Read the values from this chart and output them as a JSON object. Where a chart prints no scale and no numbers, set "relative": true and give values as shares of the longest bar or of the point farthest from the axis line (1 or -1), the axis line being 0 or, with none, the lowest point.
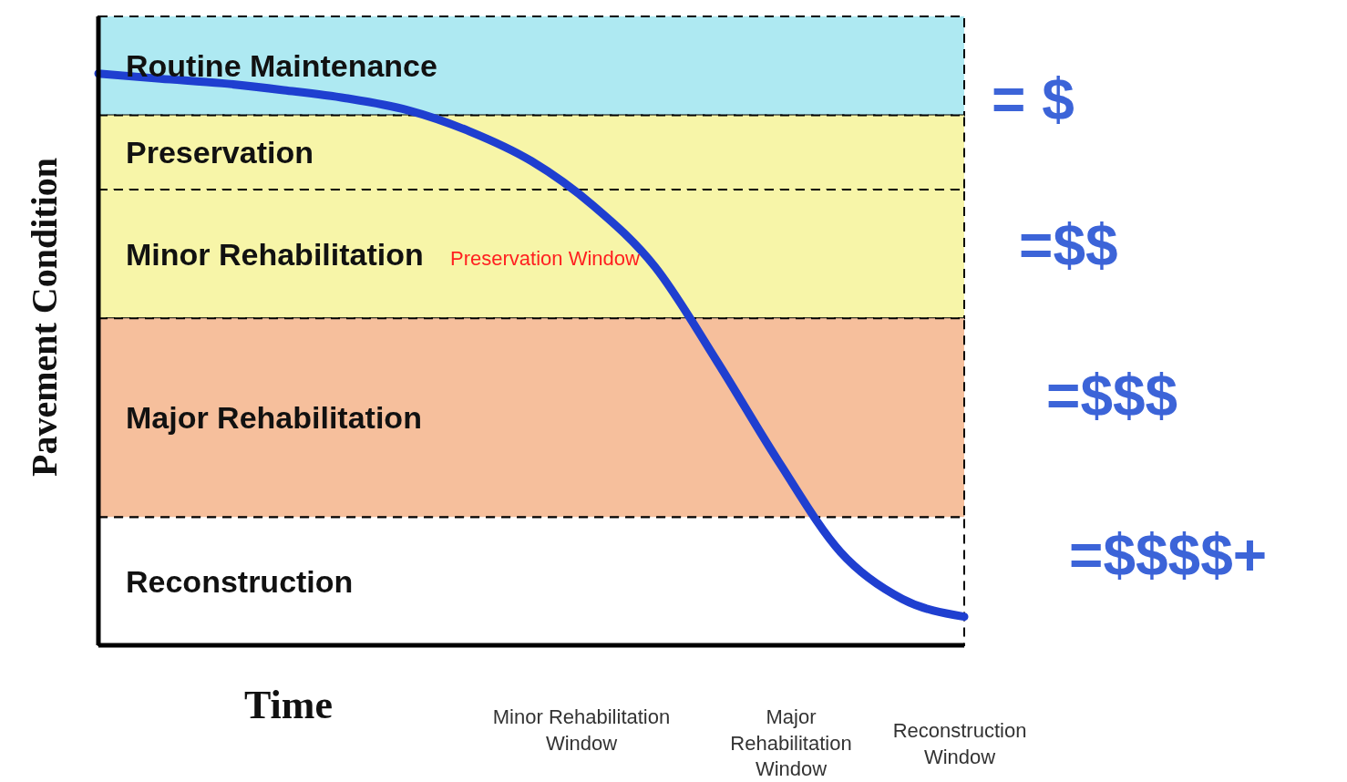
{
  "chart_data": {
    "type": "line",
    "relative": true,
    "xlabel": "Time",
    "ylabel": "Pavement Condition",
    "marker": "none",
    "categories": [
      null,
      null,
      null,
      null,
      null,
      null,
      null,
      null,
      null,
      null,
      null,
      null,
      null,
      null,
      null
    ],
    "series": [
      {
        "color": "#1f3fd0",
        "values": [
          1.0,
          0.991,
          0.983,
          0.971,
          0.957,
          0.936,
          0.899,
          0.847,
          0.769,
          0.662,
          0.497,
          0.321,
          0.163,
          0.081,
          0.05
        ]
      }
    ],
    "bands": [
      {
        "axis": "y",
        "from": 0.927,
        "to": 1.1,
        "label": "Routine Maintenance",
        "color": "#aee9f2"
      },
      {
        "axis": "y",
        "from": 0.797,
        "to": 0.927,
        "label": "Preservation",
        "color": "#f7f5a8"
      },
      {
        "axis": "y",
        "from": 0.572,
        "to": 0.797,
        "label": "Minor Rehabilitation",
        "color": "#f7f5a8"
      },
      {
        "axis": "y",
        "from": 0.224,
        "to": 0.572,
        "label": "Major Rehabilitation",
        "color": "#f6bf9c"
      },
      {
        "axis": "y",
        "from": 0,
        "to": 0.224,
        "label": "Reconstruction",
        "color": "#ffffff"
      }
    ],
    "annotations": [
      "Preservation Window",
      "Minor Rehabilitation Window",
      "Major Rehabilitation Window",
      "Reconstruction Window",
      "= $",
      "=$$",
      "=$$$",
      "=$$$$+"
    ]
  }
}
